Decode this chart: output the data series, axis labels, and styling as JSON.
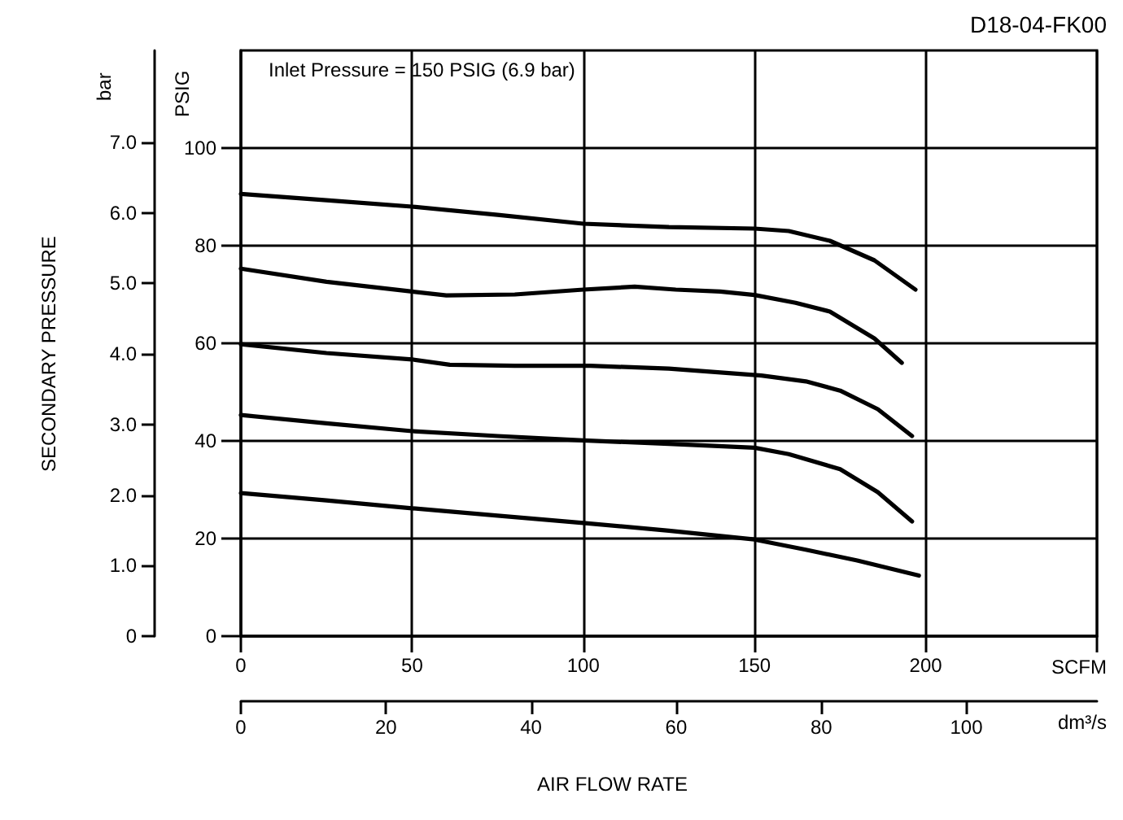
{
  "chart_data": {
    "type": "line",
    "xlabel": "SCFM",
    "x2label": "dm³/s",
    "ylabel": "PSIG",
    "y2label": "bar",
    "annotations": [
      "D18-04-FK00",
      "Inlet Pressure = 150 PSIG (6.9 bar)",
      "SECONDARY PRESSURE",
      "AIR FLOW RATE"
    ],
    "xlim": [
      0,
      250
    ],
    "xticks": [
      0,
      50,
      100,
      150,
      200,
      {
        "value": 250,
        "label": null
      }
    ],
    "x2lim": [
      0,
      118
    ],
    "x2ticks": [
      0,
      20,
      40,
      60,
      80,
      100
    ],
    "ylim": [
      0,
      120
    ],
    "yticks": [
      0,
      20,
      40,
      60,
      80,
      100
    ],
    "y2lim": [
      0,
      8.3
    ],
    "y2ticks": [
      0,
      {
        "value": 1,
        "label": "1.0"
      },
      {
        "value": 2,
        "label": "2.0"
      },
      {
        "value": 3,
        "label": "3.0"
      },
      {
        "value": 4,
        "label": "4.0"
      },
      {
        "value": 5,
        "label": "5.0"
      },
      {
        "value": 6,
        "label": "6.0"
      },
      {
        "value": 7,
        "label": "7.0"
      }
    ],
    "grid": true,
    "marker": "none",
    "line_style": "solid",
    "series": [
      {
        "color": "#000000",
        "x": [
          0,
          25,
          50,
          75,
          100,
          125,
          150,
          160,
          172,
          185,
          197
        ],
        "values": [
          90.6,
          89.3,
          88,
          86.3,
          84.5,
          83.8,
          83.5,
          83,
          81,
          77,
          71
        ]
      },
      {
        "color": "#000000",
        "x": [
          0,
          25,
          50,
          60,
          80,
          100,
          115,
          127,
          140,
          150,
          162,
          172,
          185,
          193
        ],
        "values": [
          75.3,
          72.6,
          70.6,
          69.8,
          70,
          71,
          71.6,
          71,
          70.6,
          69.9,
          68.3,
          66.5,
          61,
          56
        ]
      },
      {
        "color": "#000000",
        "x": [
          0,
          25,
          50,
          61,
          80,
          102,
          125,
          152,
          165,
          175,
          186,
          196
        ],
        "values": [
          59.8,
          58,
          56.7,
          55.6,
          55.4,
          55.4,
          54.8,
          53.4,
          52.2,
          50.3,
          46.5,
          41
        ]
      },
      {
        "color": "#000000",
        "x": [
          0,
          25,
          50,
          75,
          100,
          125,
          150,
          160,
          175,
          186,
          196
        ],
        "values": [
          45.3,
          43.6,
          42,
          41,
          40.1,
          39.4,
          38.6,
          37.3,
          34.2,
          29.5,
          23.5
        ]
      },
      {
        "color": "#000000",
        "x": [
          0,
          25,
          50,
          75,
          100,
          125,
          150,
          165,
          180,
          198
        ],
        "values": [
          29.3,
          27.8,
          26.2,
          24.7,
          23.2,
          21.6,
          19.8,
          17.7,
          15.5,
          12.4
        ]
      }
    ]
  }
}
